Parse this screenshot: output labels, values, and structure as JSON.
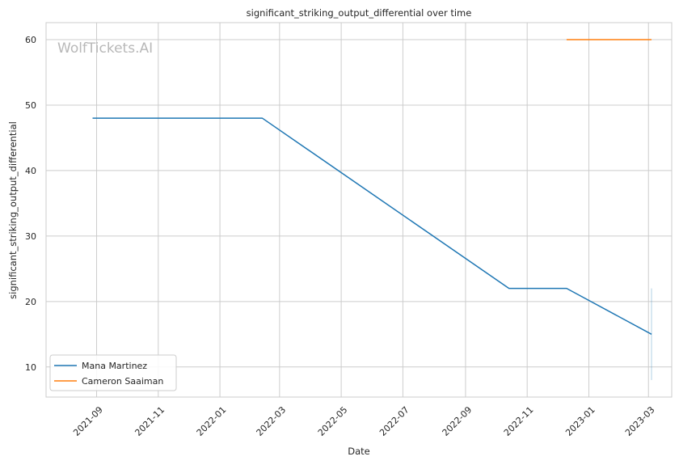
{
  "chart_data": {
    "type": "line",
    "title": "significant_striking_output_differential over time",
    "xlabel": "Date",
    "ylabel": "significant_striking_output_differential",
    "watermark": "WolfTickets.AI",
    "x_axis": "date",
    "xlim": [
      "2021-07-13",
      "2023-03-24"
    ],
    "ylim": [
      5.4,
      62.6
    ],
    "x_ticks": [
      "2021-09",
      "2021-11",
      "2022-01",
      "2022-03",
      "2022-05",
      "2022-07",
      "2022-09",
      "2022-11",
      "2023-01",
      "2023-03"
    ],
    "y_ticks": [
      10,
      20,
      30,
      40,
      50,
      60
    ],
    "grid": true,
    "legend_position": "lower-left",
    "series": [
      {
        "name": "Mana Martinez",
        "color": "#1f77b4",
        "points": [
          {
            "x": "2021-08-28",
            "y": 48
          },
          {
            "x": "2022-02-12",
            "y": 48
          },
          {
            "x": "2022-10-14",
            "y": 22
          },
          {
            "x": "2022-12-10",
            "y": 22
          },
          {
            "x": "2023-03-04",
            "y": 15
          }
        ]
      },
      {
        "name": "Cameron Saaiman",
        "color": "#ff7f0e",
        "points": [
          {
            "x": "2022-12-10",
            "y": 60
          },
          {
            "x": "2023-03-04",
            "y": 60
          }
        ]
      }
    ],
    "error_bar": {
      "x": "2023-03-04",
      "y_low": 8,
      "y_high": 22,
      "color": "#1f77b4"
    }
  }
}
